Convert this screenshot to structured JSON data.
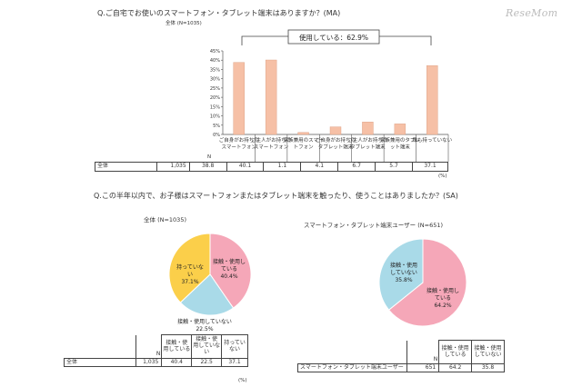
{
  "watermark": "ReseMom",
  "q1": {
    "text": "Q.ご自宅でお使いのスマートフォン・タブレット端末はありますか？(MA)",
    "subtitle": "全体 (N=1035)",
    "bracket_label": "使用している：62.9%",
    "row_label": "全体",
    "n_header": "N",
    "n_value": "1,035",
    "unit": "(%)"
  },
  "q2": {
    "text": "Q.この半年以内で、お子様はスマートフォンまたはタブレット端末を触ったり、使うことはありましたか？(SA)",
    "unit": "(%)",
    "col_using": "接触・使用している",
    "col_not": "接触・使用していない",
    "col_none": "持っていない",
    "left": {
      "title": "全体 (N=1035)",
      "row_label": "全体",
      "n_header": "N",
      "n_value": "1,035"
    },
    "right": {
      "title": "スマートフォン・タブレット端末ユーザー (N=651)",
      "row_label": "スマートフォン・タブレット端末ユーザー",
      "n_header": "N",
      "n_value": "651"
    }
  },
  "colors": {
    "bar": "#F6C0A6",
    "bar_edge": "#D9997B",
    "pink": "#F5A7B8",
    "blue": "#A9DAE8",
    "yellow": "#FBCF4A"
  },
  "chart_data": [
    {
      "type": "bar",
      "categories": [
        "ご自身がお持ちのスマートフォン",
        "ご主人がお持ちのスマートフォン",
        "家族兼用のスマートフォン",
        "ご自身がお持ちのタブレット端末",
        "ご主人がお持ちのタブレット端末",
        "家族兼用のタブレット端末",
        "誰も持っていない"
      ],
      "values": [
        38.8,
        40.1,
        1.1,
        4.1,
        6.7,
        5.7,
        37.1
      ],
      "value_labels": [
        "38.8",
        "40.1",
        "1.1",
        "4.1",
        "6.7",
        "5.7",
        "37.1"
      ],
      "yticks": [
        "0%",
        "5%",
        "10%",
        "15%",
        "20%",
        "25%",
        "30%",
        "35%",
        "40%",
        "45%"
      ],
      "ylim": [
        0,
        45
      ],
      "grid": false
    },
    {
      "type": "pie",
      "slices": [
        {
          "label": "接触・使用している",
          "pct": "40.4%",
          "value": 40.4
        },
        {
          "label": "接触・使用していない",
          "pct": "22.5%",
          "value": 22.5
        },
        {
          "label": "持っていない",
          "pct": "37.1%",
          "value": 37.1
        }
      ],
      "table_values": [
        "40.4",
        "22.5",
        "37.1"
      ]
    },
    {
      "type": "pie",
      "slices": [
        {
          "label": "接触・使用している",
          "pct": "64.2%",
          "value": 64.2
        },
        {
          "label": "接触・使用していない",
          "pct": "35.8%",
          "value": 35.8
        }
      ],
      "table_values": [
        "64.2",
        "35.8"
      ]
    }
  ]
}
